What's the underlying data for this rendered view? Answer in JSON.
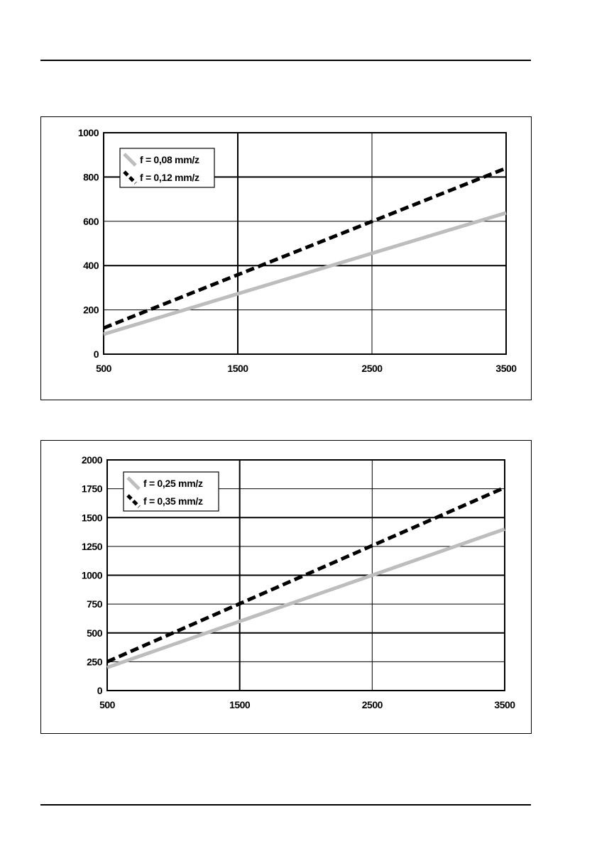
{
  "colors": {
    "series_light": "#bdbdbd",
    "series_dark": "#000000",
    "grid": "#000000",
    "background": "#ffffff"
  },
  "chart_data": [
    {
      "type": "line",
      "xlim": [
        500,
        3500
      ],
      "ylim": [
        0,
        1000
      ],
      "x_ticks": [
        500,
        1500,
        2500,
        3500
      ],
      "y_ticks": [
        0,
        200,
        400,
        600,
        800,
        1000
      ],
      "x_tick_labels": [
        "500",
        "1500",
        "2500",
        "3500"
      ],
      "y_tick_labels": [
        "0",
        "200",
        "400",
        "600",
        "800",
        "1000"
      ],
      "grid": true,
      "legend_position": "top-left",
      "series": [
        {
          "name": "f = 0,08 mm/z",
          "style": "solid",
          "color": "#bdbdbd",
          "x": [
            500,
            3500
          ],
          "y": [
            90,
            638
          ]
        },
        {
          "name": "f = 0,12 mm/z",
          "style": "dashed",
          "color": "#000000",
          "x": [
            500,
            3500
          ],
          "y": [
            118,
            840
          ]
        }
      ]
    },
    {
      "type": "line",
      "xlim": [
        500,
        3500
      ],
      "ylim": [
        0,
        2000
      ],
      "x_ticks": [
        500,
        1500,
        2500,
        3500
      ],
      "y_ticks": [
        0,
        250,
        500,
        750,
        1000,
        1250,
        1500,
        1750,
        2000
      ],
      "x_tick_labels": [
        "500",
        "1500",
        "2500",
        "3500"
      ],
      "y_tick_labels": [
        "0",
        "250",
        "500",
        "750",
        "1000",
        "1250",
        "1500",
        "1750",
        "2000"
      ],
      "grid": true,
      "legend_position": "top-left",
      "series": [
        {
          "name": "f = 0,25 mm/z",
          "style": "solid",
          "color": "#bdbdbd",
          "x": [
            500,
            3500
          ],
          "y": [
            200,
            1400
          ]
        },
        {
          "name": "f = 0,35 mm/z",
          "style": "dashed",
          "color": "#000000",
          "x": [
            500,
            3500
          ],
          "y": [
            250,
            1760
          ]
        }
      ]
    }
  ]
}
